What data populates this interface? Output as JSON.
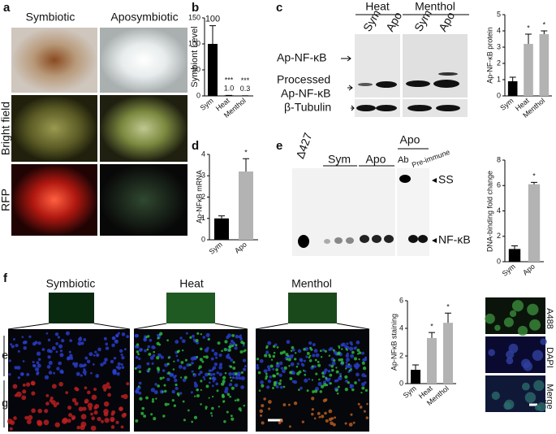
{
  "figure": {
    "panel_labels": [
      "a",
      "b",
      "c",
      "d",
      "e",
      "f"
    ],
    "a": {
      "columns": [
        "Symbiotic",
        "Aposymbiotic"
      ],
      "rows": [
        "Bright field",
        "RFP"
      ]
    },
    "c_blot": {
      "groups": [
        "Heat",
        "Menthol"
      ],
      "lanes": [
        "Sym",
        "Apo",
        "Sym",
        "Apo"
      ],
      "bands": [
        "Ap-NF-κB",
        "Processed",
        "Ap-NF-κB",
        "β-Tubulin"
      ]
    },
    "e_gel": {
      "lanes": [
        "Δ427",
        "Sym",
        "Apo",
        "Apo",
        "Ab",
        "Pre-immune"
      ],
      "bands": [
        "SS",
        "NF-κB"
      ]
    },
    "f": {
      "columns": [
        "Symbiotic",
        "Heat",
        "Menthol"
      ],
      "layers": [
        "e",
        "g"
      ],
      "stains": [
        "A488",
        "DAPI",
        "Merge"
      ]
    }
  },
  "chart_data": [
    {
      "type": "bar",
      "ylabel": "Symbiont Level",
      "categories": [
        "Sym",
        "Heat",
        "Menthol"
      ],
      "values": [
        100,
        1.0,
        0.3
      ],
      "value_labels": [
        "100",
        "1.0",
        "0.3"
      ],
      "errors": [
        35,
        0,
        0
      ],
      "colors": [
        "#000000",
        "#000000",
        "#000000"
      ],
      "ylim": [
        0,
        150
      ],
      "yticks": [
        0,
        50,
        100,
        150
      ],
      "annotations": [
        {
          "category": "Heat",
          "text": "***"
        },
        {
          "category": "Menthol",
          "text": "***"
        }
      ]
    },
    {
      "type": "bar",
      "ylabel": "Ap-NF-κB protein",
      "categories": [
        "Sym",
        "Heat",
        "Menthol"
      ],
      "values": [
        0.9,
        3.2,
        3.8
      ],
      "errors": [
        0.25,
        0.6,
        0.2
      ],
      "colors": [
        "#000000",
        "#b3b3b3",
        "#b3b3b3"
      ],
      "ylim": [
        0,
        5
      ],
      "yticks": [
        0,
        1,
        2,
        3,
        4,
        5
      ],
      "annotations": [
        {
          "category": "Heat",
          "text": "*"
        },
        {
          "category": "Menthol",
          "text": "*"
        }
      ]
    },
    {
      "type": "bar",
      "ylabel": "Ap-NFκB mRNA",
      "categories": [
        "Sym",
        "Apo"
      ],
      "values": [
        1.0,
        3.2
      ],
      "errors": [
        0.12,
        0.6
      ],
      "colors": [
        "#000000",
        "#b3b3b3"
      ],
      "ylim": [
        0,
        4
      ],
      "yticks": [
        0,
        1,
        2,
        3,
        4
      ],
      "annotations": [
        {
          "category": "Apo",
          "text": "*"
        }
      ]
    },
    {
      "type": "bar",
      "ylabel": "DNA-binding fold change",
      "categories": [
        "Sym",
        "Apo"
      ],
      "values": [
        1.0,
        6.1
      ],
      "errors": [
        0.25,
        0.15
      ],
      "colors": [
        "#000000",
        "#b3b3b3"
      ],
      "ylim": [
        0,
        8
      ],
      "yticks": [
        0,
        2,
        4,
        6,
        8
      ],
      "annotations": [
        {
          "category": "Apo",
          "text": "*"
        }
      ]
    },
    {
      "type": "bar",
      "ylabel": "Ap-NFκB staining",
      "categories": [
        "Sym",
        "Heat",
        "Menthol"
      ],
      "values": [
        1.0,
        3.3,
        4.4
      ],
      "errors": [
        0.35,
        0.4,
        0.7
      ],
      "colors": [
        "#000000",
        "#b3b3b3",
        "#b3b3b3"
      ],
      "ylim": [
        0,
        6
      ],
      "yticks": [
        0,
        2,
        4,
        6
      ],
      "annotations": [
        {
          "category": "Heat",
          "text": "*"
        },
        {
          "category": "Menthol",
          "text": "*"
        }
      ]
    }
  ]
}
